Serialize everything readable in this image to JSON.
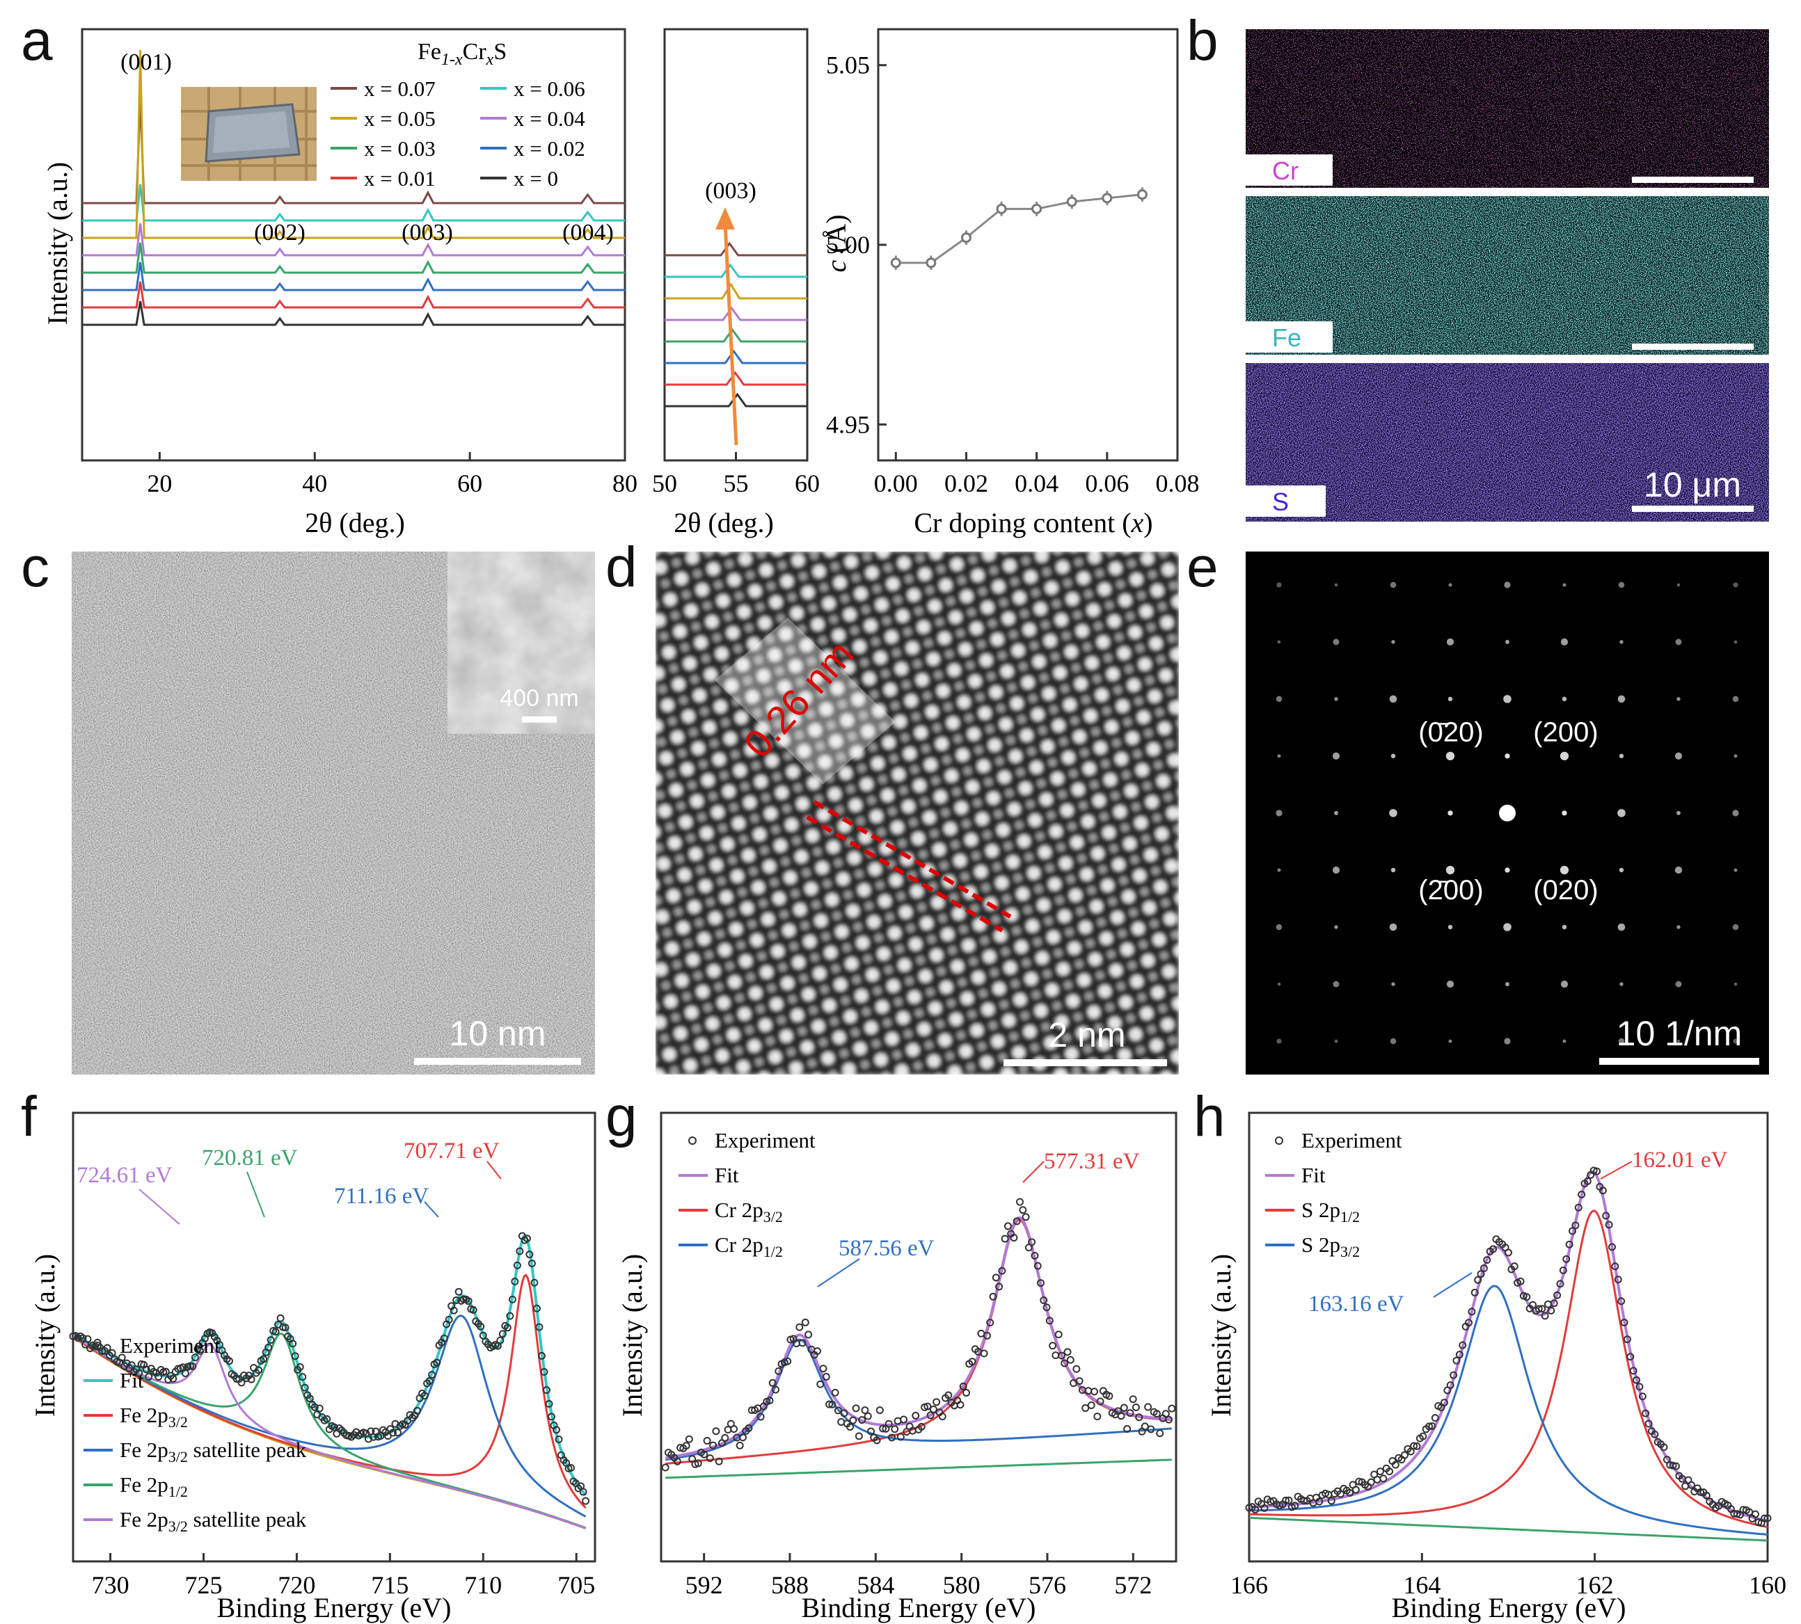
{
  "panel_labels": {
    "a": "a",
    "b": "b",
    "c": "c",
    "d": "d",
    "e": "e",
    "f": "f",
    "g": "g",
    "h": "h"
  },
  "colors": {
    "x007": "#7a4a46",
    "x006": "#33c6c6",
    "x005": "#c9a41a",
    "x004": "#b07ad6",
    "x003": "#3aa36a",
    "x002": "#2f6fc2",
    "x001": "#e23b3b",
    "x0": "#333333",
    "arrow": "#f08a3c",
    "cr_map": "#d040d0",
    "fe_map": "#35d2d2",
    "s_map": "#4a2ad6",
    "fit_f": "#33c6c6",
    "red": "#e23b3b",
    "blue": "#2f6fc2",
    "green": "#3aa36a",
    "purple": "#b07ad6",
    "bg": "#c9a41a"
  },
  "panel_a": {
    "formula_main": "Fe",
    "formula_sub1": "1-x",
    "formula_cr": "Cr",
    "formula_sub2": "x",
    "formula_s": "S",
    "ylabel": "Intensity (a.u.)",
    "xlabel": "2θ (deg.)",
    "peak_labels": [
      "(001)",
      "(002)",
      "(003)",
      "(004)"
    ],
    "legend": [
      {
        "key": "x007",
        "text": "x = 0.07"
      },
      {
        "key": "x006",
        "text": "x = 0.06"
      },
      {
        "key": "x005",
        "text": "x = 0.05"
      },
      {
        "key": "x004",
        "text": "x = 0.04"
      },
      {
        "key": "x003",
        "text": "x = 0.03"
      },
      {
        "key": "x002",
        "text": "x = 0.02"
      },
      {
        "key": "x001",
        "text": "x = 0.01"
      },
      {
        "key": "x0",
        "text": "x = 0"
      }
    ],
    "xticks": [
      "20",
      "40",
      "60",
      "80"
    ],
    "zoom_xticks": [
      "50",
      "55",
      "60"
    ],
    "zoom_label": "(003)"
  },
  "chart_data": [
    {
      "type": "line",
      "title": "",
      "xlabel": "2θ (deg.)",
      "ylabel": "Intensity (a.u.)",
      "xlim": [
        10,
        80
      ],
      "series": [
        {
          "name": "x = 0.07",
          "peaks": [
            17.5,
            35.5,
            54.6,
            75.2
          ]
        },
        {
          "name": "x = 0.06",
          "peaks": [
            17.5,
            35.5,
            54.6,
            75.2
          ]
        },
        {
          "name": "x = 0.05",
          "peaks": [
            17.5,
            35.5,
            54.6,
            75.2
          ]
        },
        {
          "name": "x = 0.04",
          "peaks": [
            17.5,
            35.5,
            54.6,
            75.2
          ]
        },
        {
          "name": "x = 0.03",
          "peaks": [
            17.5,
            35.5,
            54.6,
            75.2
          ]
        },
        {
          "name": "x = 0.02",
          "peaks": [
            17.5,
            35.5,
            54.6,
            75.2
          ]
        },
        {
          "name": "x = 0.01",
          "peaks": [
            17.5,
            35.5,
            54.6,
            75.2
          ]
        },
        {
          "name": "x = 0",
          "peaks": [
            17.5,
            35.5,
            54.6,
            75.2
          ]
        }
      ]
    },
    {
      "type": "line",
      "xlabel": "2θ (deg.)",
      "xlim": [
        50,
        60
      ],
      "peak_positions": [
        54.55,
        54.6,
        54.65,
        54.7,
        54.75,
        54.85,
        54.95,
        55.1
      ]
    },
    {
      "type": "scatter",
      "xlabel": "Cr doping content (x)",
      "ylabel": "c (Å)",
      "xlim": [
        -0.005,
        0.08
      ],
      "ylim": [
        4.94,
        5.06
      ],
      "x": [
        0,
        0.01,
        0.02,
        0.03,
        0.04,
        0.05,
        0.06,
        0.07
      ],
      "y": [
        4.995,
        4.995,
        5.002,
        5.01,
        5.01,
        5.012,
        5.013,
        5.014
      ],
      "err": [
        0.002,
        0.002,
        0.002,
        0.002,
        0.002,
        0.002,
        0.002,
        0.002
      ],
      "xticks": [
        "0.00",
        "0.02",
        "0.04",
        "0.06",
        "0.08"
      ],
      "yticks": [
        "5.05",
        "5.00",
        "4.95"
      ]
    },
    {
      "type": "scatter",
      "xlabel": "Binding Energy (eV)",
      "ylabel": "Intensity (a.u.)",
      "xlim": [
        732,
        704
      ],
      "annotations": [
        "724.61 eV",
        "720.81 eV",
        "711.16 eV",
        "707.71 eV"
      ],
      "xticks": [
        "730",
        "725",
        "720",
        "715",
        "710",
        "705"
      ],
      "legend": [
        "Experiment",
        "Fit",
        "Fe 2p3/2",
        "Fe 2p3/2 satellite peak",
        "Fe 2p1/2",
        "Fe 2p3/2 satellite peak"
      ]
    },
    {
      "type": "scatter",
      "xlabel": "Binding Energy (eV)",
      "ylabel": "Intensity (a.u.)",
      "xlim": [
        594,
        570
      ],
      "annotations": [
        "587.56 eV",
        "577.31 eV"
      ],
      "xticks": [
        "592",
        "588",
        "584",
        "580",
        "576",
        "572"
      ],
      "legend": [
        "Experiment",
        "Fit",
        "Cr 2p3/2",
        "Cr 2p1/2"
      ]
    },
    {
      "type": "scatter",
      "xlabel": "Binding Energy (eV)",
      "ylabel": "Intensity (a.u.)",
      "xlim": [
        166,
        160
      ],
      "annotations": [
        "163.16 eV",
        "162.01 eV"
      ],
      "xticks": [
        "166",
        "164",
        "162",
        "160"
      ],
      "legend": [
        "Experiment",
        "Fit",
        "S 2p1/2",
        "S 2p3/2"
      ]
    }
  ],
  "panel_b": {
    "labels": [
      "Cr",
      "Fe",
      "S"
    ],
    "scalebar": "10 μm"
  },
  "panel_c": {
    "scalebar": "10 nm",
    "inset_scalebar": "400 nm"
  },
  "panel_d": {
    "spacing": "0.26 nm",
    "scalebar": "2 nm"
  },
  "panel_e": {
    "spots": [
      "(0̄20)",
      "(200)",
      "(2̄00)",
      "(020)"
    ],
    "scalebar": "10 1/nm"
  },
  "panel_f": {
    "legend": [
      {
        "text": "Experiment",
        "key": "exp"
      },
      {
        "text": "Fit",
        "key": "fit_f"
      },
      {
        "text": "Fe 2p",
        "sub": "3/2",
        "after": "",
        "key": "red"
      },
      {
        "text": "Fe 2p",
        "sub": "3/2",
        "after": " satellite peak",
        "key": "blue"
      },
      {
        "text": "Fe 2p",
        "sub": "1/2",
        "after": "",
        "key": "green"
      },
      {
        "text": "Fe 2p",
        "sub": "3/2",
        "after": " satellite peak",
        "key": "purple"
      }
    ]
  },
  "panel_g": {
    "legend": [
      {
        "text": "Experiment",
        "key": "exp"
      },
      {
        "text": "Fit",
        "key": "purple"
      },
      {
        "text": "Cr 2p",
        "sub": "3/2",
        "key": "red"
      },
      {
        "text": "Cr 2p",
        "sub": "1/2",
        "key": "blue"
      }
    ]
  },
  "panel_h": {
    "legend": [
      {
        "text": "Experiment",
        "key": "exp"
      },
      {
        "text": "Fit",
        "key": "purple"
      },
      {
        "text": "S 2p",
        "sub": "1/2",
        "key": "red"
      },
      {
        "text": "S 2p",
        "sub": "3/2",
        "key": "blue"
      }
    ]
  }
}
